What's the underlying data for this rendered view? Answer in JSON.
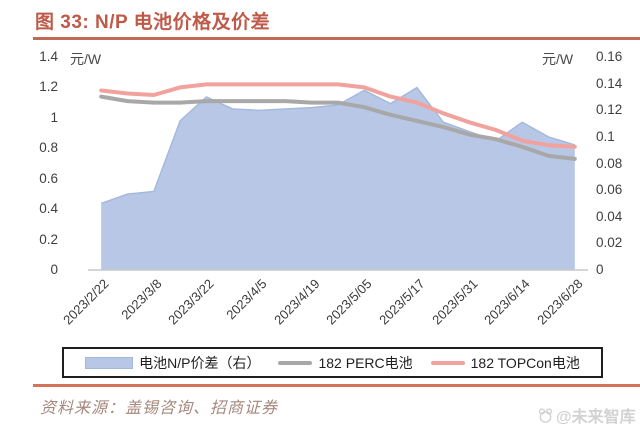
{
  "title": "图 33: N/P 电池价格及价差",
  "source": "资料来源：盖锡咨询、招商证券",
  "watermark": "@未来智库",
  "colors": {
    "title_red": "#bf5a49",
    "top_rule": "#c06a55",
    "bottom_rule": "#d4735a",
    "area_fill": "#b7c7e5",
    "area_border": "#a3b8dd",
    "perc_line": "#a8a8a8",
    "topcon_line": "#f2a29c",
    "axis_line": "#c8c8c8",
    "tick_text": "#3f3f3f",
    "legend_border": "#1f1f1f",
    "source_text": "#a5887d",
    "watermark_gray": "#d2d2d2"
  },
  "chart_data": {
    "type": "combo",
    "subtype": "area+line",
    "grid": "off",
    "legend_position": "bottom",
    "n_points": 19,
    "x_tick_every": 2,
    "x_tick_labels": [
      "2023/2/22",
      "2023/3/8",
      "2023/3/22",
      "2023/4/5",
      "2023/4/19",
      "2023/5/05",
      "2023/5/17",
      "2023/5/31",
      "2023/6/14",
      "2023/6/28"
    ],
    "left_axis": {
      "unit": "元/W",
      "min": 0,
      "max": 1.4,
      "ticks": [
        "1.4",
        "1.2",
        "1",
        "0.8",
        "0.6",
        "0.4",
        "0.2",
        "0"
      ]
    },
    "right_axis": {
      "unit": "元/W",
      "min": 0,
      "max": 0.16,
      "ticks": [
        "0.16",
        "0.14",
        "0.12",
        "0.1",
        "0.08",
        "0.06",
        "0.04",
        "0.02",
        "0"
      ]
    },
    "series": [
      {
        "name": "电池N/P价差（右）",
        "type": "area",
        "axis": "right",
        "fill": "#b7c7e5",
        "stroke": "#a3b8dd",
        "values": [
          0.05,
          0.057,
          0.059,
          0.112,
          0.13,
          0.121,
          0.12,
          0.121,
          0.122,
          0.124,
          0.135,
          0.125,
          0.137,
          0.111,
          0.104,
          0.097,
          0.111,
          0.1,
          0.094
        ]
      },
      {
        "name": "182 PERC电池",
        "type": "line",
        "axis": "left",
        "color": "#a8a8a8",
        "values": [
          1.14,
          1.11,
          1.1,
          1.1,
          1.11,
          1.11,
          1.11,
          1.11,
          1.1,
          1.1,
          1.07,
          1.02,
          0.98,
          0.94,
          0.89,
          0.86,
          0.81,
          0.75,
          0.73
        ]
      },
      {
        "name": "182 TOPCon电池",
        "type": "line",
        "axis": "left",
        "color": "#f2a29c",
        "values": [
          1.18,
          1.16,
          1.15,
          1.2,
          1.22,
          1.22,
          1.22,
          1.22,
          1.22,
          1.22,
          1.2,
          1.14,
          1.1,
          1.03,
          0.97,
          0.92,
          0.85,
          0.82,
          0.81
        ]
      }
    ]
  }
}
